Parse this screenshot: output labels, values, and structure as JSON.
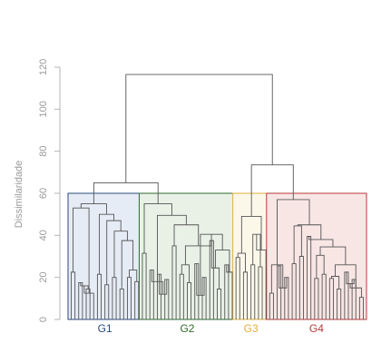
{
  "chart_data": {
    "type": "dendrogram",
    "title": "",
    "ylabel": "Dissimilaridade",
    "ylim": [
      0,
      120
    ],
    "yticks": [
      0,
      20,
      40,
      60,
      80,
      100,
      120
    ],
    "ytick_labels": [
      "0",
      "20",
      "40",
      "60",
      "80",
      "100",
      "120"
    ],
    "n_leaves": 79,
    "branch_color": "#555555",
    "axis_color": "#b5b5b5",
    "groups": [
      {
        "label": "G1",
        "leaf_range": [
          0,
          18
        ],
        "cut_height": 60,
        "color": "#2b4a7a",
        "fill": "#e6ecf6"
      },
      {
        "label": "G2",
        "leaf_range": [
          19,
          43
        ],
        "cut_height": 60,
        "color": "#2f6b2f",
        "fill": "#e9f1e7"
      },
      {
        "label": "G3",
        "leaf_range": [
          44,
          52
        ],
        "cut_height": 60,
        "color": "#e0b040",
        "fill": "#fbf8ea"
      },
      {
        "label": "G4",
        "leaf_range": [
          53,
          78
        ],
        "cut_height": 60,
        "color": "#b83a3a",
        "fill": "#f8e6e5"
      }
    ],
    "merges": [
      {
        "a": "L0",
        "b": "L1",
        "h": 22.5
      },
      {
        "a": "L2",
        "b": "L3",
        "h": 17.5
      },
      {
        "a": "L4",
        "b": "L5",
        "h": 14.5
      },
      {
        "a": "M1",
        "b": "M2",
        "h": 16
      },
      {
        "a": "L6",
        "b": "M3",
        "h": 12.5
      },
      {
        "a": "L7",
        "b": "L8",
        "h": 21.5
      },
      {
        "a": "L9",
        "b": "L10",
        "h": 16.5
      },
      {
        "a": "L11",
        "b": "L12",
        "h": 20
      },
      {
        "a": "L13",
        "b": "L14",
        "h": 14.5
      },
      {
        "a": "L15",
        "b": "L16",
        "h": 20
      },
      {
        "a": "L17",
        "b": "L18",
        "h": 18
      },
      {
        "a": "M9",
        "b": "M10",
        "h": 23.5
      },
      {
        "a": "M8",
        "b": "M11",
        "h": 37.5
      },
      {
        "a": "M7",
        "b": "M12",
        "h": 42
      },
      {
        "a": "M6",
        "b": "M13",
        "h": 47
      },
      {
        "a": "M5",
        "b": "M14",
        "h": 50
      },
      {
        "a": "M0",
        "b": "M4",
        "h": 53
      },
      {
        "a": "M16",
        "b": "M15",
        "h": 55
      },
      {
        "a": "L19",
        "b": "L20",
        "h": 31.5
      },
      {
        "a": "L21",
        "b": "L22",
        "h": 23.5
      },
      {
        "a": "L23",
        "b": "L24",
        "h": 21.5
      },
      {
        "a": "L25",
        "b": "L26",
        "h": 19
      },
      {
        "a": "M20",
        "b": "M21",
        "h": 12
      },
      {
        "a": "M19",
        "b": "M22",
        "h": 18
      },
      {
        "a": "L27",
        "b": "L28",
        "h": 35
      },
      {
        "a": "L29",
        "b": "L30",
        "h": 21.5
      },
      {
        "a": "L31",
        "b": "L32",
        "h": 17.5
      },
      {
        "a": "M25",
        "b": "M26",
        "h": 26
      },
      {
        "a": "L33",
        "b": "L34",
        "h": 26.5
      },
      {
        "a": "L35",
        "b": "L36",
        "h": 20
      },
      {
        "a": "M28",
        "b": "M29",
        "h": 11.5
      },
      {
        "a": "L37",
        "b": "L38",
        "h": 37.5
      },
      {
        "a": "L39",
        "b": "L40",
        "h": 14.5
      },
      {
        "a": "M31",
        "b": "M32",
        "h": 24.5
      },
      {
        "a": "L41",
        "b": "L42",
        "h": 26
      },
      {
        "a": "M34",
        "b": "L43",
        "h": 22.5
      },
      {
        "a": "M33",
        "b": "M35",
        "h": 33
      },
      {
        "a": "M30",
        "b": "M36",
        "h": 40.5
      },
      {
        "a": "M27",
        "b": "M37",
        "h": 35
      },
      {
        "a": "M24",
        "b": "M38",
        "h": 45
      },
      {
        "a": "M23",
        "b": "M39",
        "h": 49.5
      },
      {
        "a": "M18",
        "b": "M40",
        "h": 55
      },
      {
        "a": "L44",
        "b": "L45",
        "h": 29.5
      },
      {
        "a": "L46",
        "b": "L47",
        "h": 22.5
      },
      {
        "a": "M42",
        "b": "M43",
        "h": 31.5
      },
      {
        "a": "L48",
        "b": "L49",
        "h": 26
      },
      {
        "a": "L50",
        "b": "L51",
        "h": 25
      },
      {
        "a": "M45",
        "b": "M46",
        "h": 40.5
      },
      {
        "a": "M47",
        "b": "L52",
        "h": 33
      },
      {
        "a": "M44",
        "b": "M48",
        "h": 49
      },
      {
        "a": "L53",
        "b": "L54",
        "h": 12.5
      },
      {
        "a": "L55",
        "b": "L56",
        "h": 25.5
      },
      {
        "a": "L57",
        "b": "L58",
        "h": 20
      },
      {
        "a": "M51",
        "b": "M52",
        "h": 15
      },
      {
        "a": "M50",
        "b": "M53",
        "h": 26
      },
      {
        "a": "L59",
        "b": "L60",
        "h": 26.5
      },
      {
        "a": "L61",
        "b": "L62",
        "h": 30
      },
      {
        "a": "M55",
        "b": "M56",
        "h": 44.5
      },
      {
        "a": "L63",
        "b": "L64",
        "h": 39.5
      },
      {
        "a": "L65",
        "b": "L66",
        "h": 19.5
      },
      {
        "a": "L67",
        "b": "L68",
        "h": 21.5
      },
      {
        "a": "M59",
        "b": "M60",
        "h": 30.5
      },
      {
        "a": "L69",
        "b": "L70",
        "h": 19.5
      },
      {
        "a": "L71",
        "b": "L72",
        "h": 14.5
      },
      {
        "a": "M62",
        "b": "M63",
        "h": 20.5
      },
      {
        "a": "L73",
        "b": "L74",
        "h": 22.5
      },
      {
        "a": "L75",
        "b": "L76",
        "h": 19
      },
      {
        "a": "M65",
        "b": "M66",
        "h": 17
      },
      {
        "a": "L77",
        "b": "L78",
        "h": 10.5
      },
      {
        "a": "M67",
        "b": "M68",
        "h": 15
      },
      {
        "a": "M64",
        "b": "M69",
        "h": 26
      },
      {
        "a": "M61",
        "b": "M70",
        "h": 34.5
      },
      {
        "a": "M58",
        "b": "M71",
        "h": 38
      },
      {
        "a": "M57",
        "b": "M72",
        "h": 45
      },
      {
        "a": "M54",
        "b": "M73",
        "h": 57
      },
      {
        "a": "M49",
        "b": "M74",
        "h": 73.5
      },
      {
        "a": "M17",
        "b": "M41",
        "h": 65
      },
      {
        "a": "M76",
        "b": "M75",
        "h": 116.5
      }
    ]
  }
}
